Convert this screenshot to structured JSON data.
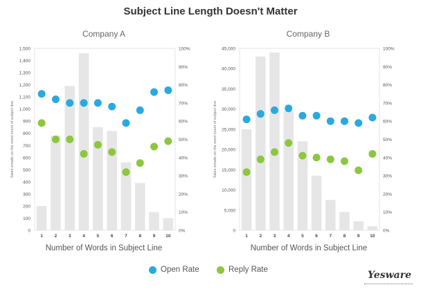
{
  "title": "Subject Line Length Doesn't Matter",
  "legend": {
    "open_label": "Open Rate",
    "reply_label": "Reply Rate"
  },
  "brand": "Yesware",
  "colors": {
    "open": "#2aa9e0",
    "reply": "#8dc63f",
    "bar": "#e6e6e6"
  },
  "chart_data": [
    {
      "type": "bar",
      "title": "Company A",
      "xlabel": "Number of Words in Subject Line",
      "ylabel": "Sales emails on the word count of subject line",
      "categories": [
        "1",
        "2",
        "3",
        "4",
        "5",
        "6",
        "7",
        "8",
        "9",
        "10"
      ],
      "ylim": [
        0,
        1500
      ],
      "y_ticks": [
        "0",
        "100",
        "200",
        "300",
        "400",
        "500",
        "600",
        "700",
        "800",
        "900",
        "1,000",
        "1,100",
        "1,200",
        "1,300",
        "1,400",
        "1,500"
      ],
      "y_tick_values": [
        0,
        100,
        200,
        300,
        400,
        500,
        600,
        700,
        800,
        900,
        1000,
        1100,
        1200,
        1300,
        1400,
        1500
      ],
      "y2lim": [
        0,
        100
      ],
      "y2_ticks": [
        "0%",
        "10%",
        "20%",
        "30%",
        "40%",
        "50%",
        "60%",
        "70%",
        "80%",
        "90%",
        "100%"
      ],
      "y2_tick_values": [
        0,
        10,
        20,
        30,
        40,
        50,
        60,
        70,
        80,
        90,
        100
      ],
      "bars": [
        200,
        780,
        1190,
        1460,
        850,
        820,
        560,
        390,
        150,
        100
      ],
      "series": [
        {
          "name": "Open Rate",
          "axis": "right",
          "values": [
            75,
            72,
            70,
            70,
            70,
            68,
            59,
            66,
            76,
            77
          ]
        },
        {
          "name": "Reply Rate",
          "axis": "right",
          "values": [
            59,
            50,
            50,
            42,
            47,
            43,
            32,
            37,
            46,
            49
          ]
        }
      ]
    },
    {
      "type": "bar",
      "title": "Company B",
      "xlabel": "Number of Words in Subject Line",
      "ylabel": "Sales emails on the word count of subject line",
      "categories": [
        "1",
        "2",
        "3",
        "4",
        "5",
        "6",
        "7",
        "8",
        "9",
        "10"
      ],
      "ylim": [
        0,
        45000
      ],
      "y_ticks": [
        "0",
        "5,000",
        "10,000",
        "15,000",
        "20,000",
        "25,000",
        "30,000",
        "35,000",
        "40,000",
        "45,000"
      ],
      "y_tick_values": [
        0,
        5000,
        10000,
        15000,
        20000,
        25000,
        30000,
        35000,
        40000,
        45000
      ],
      "y2lim": [
        0,
        100
      ],
      "y2_ticks": [
        "0%",
        "10%",
        "20%",
        "30%",
        "40%",
        "50%",
        "60%",
        "70%",
        "80%",
        "90%",
        "100%"
      ],
      "y2_tick_values": [
        0,
        10,
        20,
        30,
        40,
        50,
        60,
        70,
        80,
        90,
        100
      ],
      "bars": [
        25000,
        43000,
        44000,
        29500,
        22000,
        13500,
        7500,
        4500,
        2200,
        1000
      ],
      "series": [
        {
          "name": "Open Rate",
          "axis": "right",
          "values": [
            61,
            64,
            66,
            67,
            63,
            63,
            60,
            60,
            59,
            62
          ]
        },
        {
          "name": "Reply Rate",
          "axis": "right",
          "values": [
            32,
            39,
            43,
            48,
            41,
            40,
            39,
            38,
            33,
            42
          ]
        }
      ]
    }
  ]
}
